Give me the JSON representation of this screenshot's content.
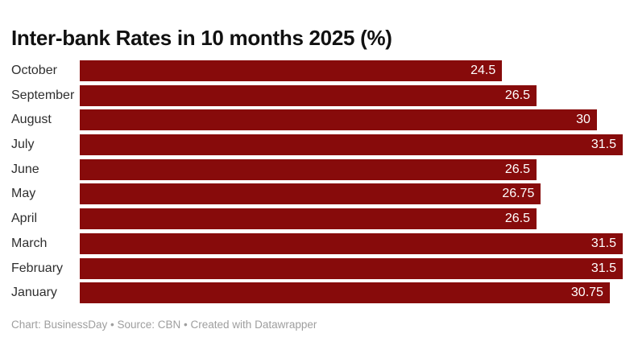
{
  "header": {
    "title": "Inter-bank Rates in 10 months 2025 (%)"
  },
  "chart_data": {
    "type": "bar",
    "orientation": "horizontal",
    "title": "Inter-bank Rates in 10 months 2025 (%)",
    "categories": [
      "October",
      "September",
      "August",
      "July",
      "June",
      "May",
      "April",
      "March",
      "February",
      "January"
    ],
    "values": [
      24.5,
      26.5,
      30,
      31.5,
      26.5,
      26.75,
      26.5,
      31.5,
      31.5,
      30.75
    ],
    "value_labels": [
      "24.5",
      "26.5",
      "30",
      "31.5",
      "26.5",
      "26.75",
      "26.5",
      "31.5",
      "31.5",
      "30.75"
    ],
    "xlim": [
      0,
      31.5
    ],
    "xlabel": "",
    "ylabel": "",
    "grid": false,
    "legend": false,
    "value_label_position": "inside-end",
    "bar_color": "#870b0b",
    "value_label_color": "#ffffff",
    "category_label_color": "#2f2f2f"
  },
  "footer": {
    "credit": "Chart: BusinessDay • Source: CBN • Created with Datawrapper"
  }
}
